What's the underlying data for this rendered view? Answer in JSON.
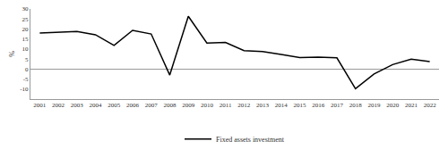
{
  "chart_data": {
    "type": "line",
    "y_label": "%",
    "categories": [
      "2001",
      "2002",
      "2003",
      "2004",
      "2005",
      "2006",
      "2007",
      "2008",
      "2009",
      "2010",
      "2011",
      "2012",
      "2013",
      "2014",
      "2015",
      "2016",
      "2017",
      "2018",
      "2019",
      "2020",
      "2021",
      "2022"
    ],
    "series": [
      {
        "name": "Fixed assets investment",
        "color": "#000000",
        "values": [
          18,
          18.5,
          18.8,
          17.1,
          11.8,
          19.3,
          17.5,
          -3,
          26.3,
          13,
          13.3,
          9.2,
          8.7,
          7.3,
          5.7,
          5.9,
          5.6,
          -9.8,
          -2.5,
          2.2,
          4.9,
          3.7
        ]
      }
    ],
    "ylim": [
      -15,
      30
    ],
    "yticks": [
      -10,
      -5,
      0,
      5,
      10,
      15,
      20,
      25,
      30
    ],
    "grid": false,
    "legend": "bottom"
  }
}
